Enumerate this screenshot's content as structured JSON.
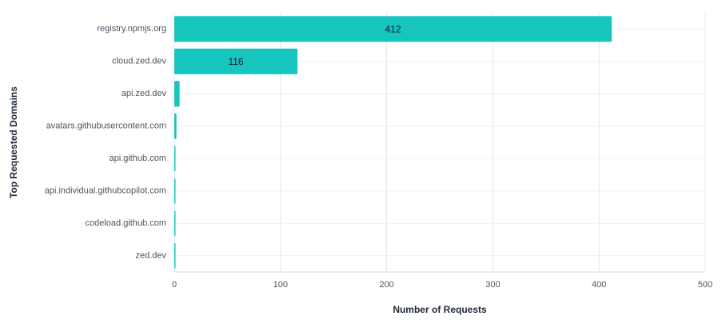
{
  "chart_data": {
    "type": "bar",
    "orientation": "horizontal",
    "ylabel": "Top Requested Domains",
    "xlabel": "Number of Requests",
    "categories": [
      "registry.npmjs.org",
      "cloud.zed.dev",
      "api.zed.dev",
      "avatars.githubusercontent.com",
      "api.github.com",
      "api.individual.githubcopilot.com",
      "codeload.github.com",
      "zed.dev"
    ],
    "values": [
      412,
      116,
      5,
      2,
      1,
      1,
      1,
      1
    ],
    "value_labels": [
      "412",
      "116",
      null,
      null,
      null,
      null,
      null,
      null
    ],
    "color": "#17c5bf",
    "xlim": [
      0,
      500
    ],
    "xticks": [
      0,
      100,
      200,
      300,
      400,
      500
    ],
    "grid": true
  }
}
